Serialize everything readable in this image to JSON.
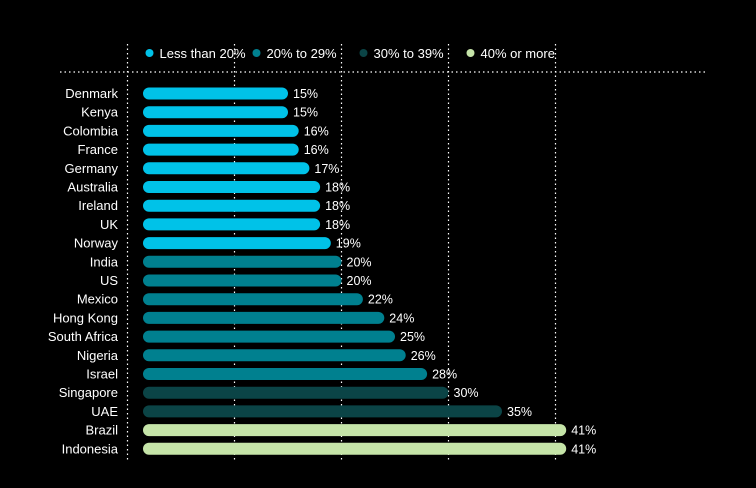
{
  "chart_data": {
    "type": "bar",
    "orientation": "horizontal",
    "categories": [
      "Denmark",
      "Kenya",
      "Colombia",
      "France",
      "Germany",
      "Australia",
      "Ireland",
      "UK",
      "Norway",
      "India",
      "US",
      "Mexico",
      "Hong Kong",
      "South Africa",
      "Nigeria",
      "Israel",
      "Singapore",
      "UAE",
      "Brazil",
      "Indonesia"
    ],
    "values": [
      15,
      15,
      16,
      16,
      17,
      18,
      18,
      18,
      19,
      20,
      20,
      22,
      24,
      25,
      26,
      28,
      30,
      35,
      41,
      41
    ],
    "value_labels": [
      "15%",
      "15%",
      "16%",
      "16%",
      "17%",
      "18%",
      "18%",
      "18%",
      "19%",
      "20%",
      "20%",
      "22%",
      "24%",
      "25%",
      "26%",
      "28%",
      "30%",
      "35%",
      "41%",
      "41%"
    ],
    "xlim": [
      0,
      43
    ],
    "bands": [
      {
        "name": "Less than 20%",
        "min": 0,
        "max": 20,
        "color": "#00c2e8"
      },
      {
        "name": "20% to 29%",
        "min": 20,
        "max": 30,
        "color": "#00808f"
      },
      {
        "name": "30% to 39%",
        "min": 30,
        "max": 40,
        "color": "#0b4446"
      },
      {
        "name": "40% or more",
        "min": 40,
        "max": 100,
        "color": "#c5e4a8"
      }
    ],
    "legend_position": "top",
    "gridlines": [
      10,
      20,
      30,
      40
    ],
    "grid": true
  }
}
